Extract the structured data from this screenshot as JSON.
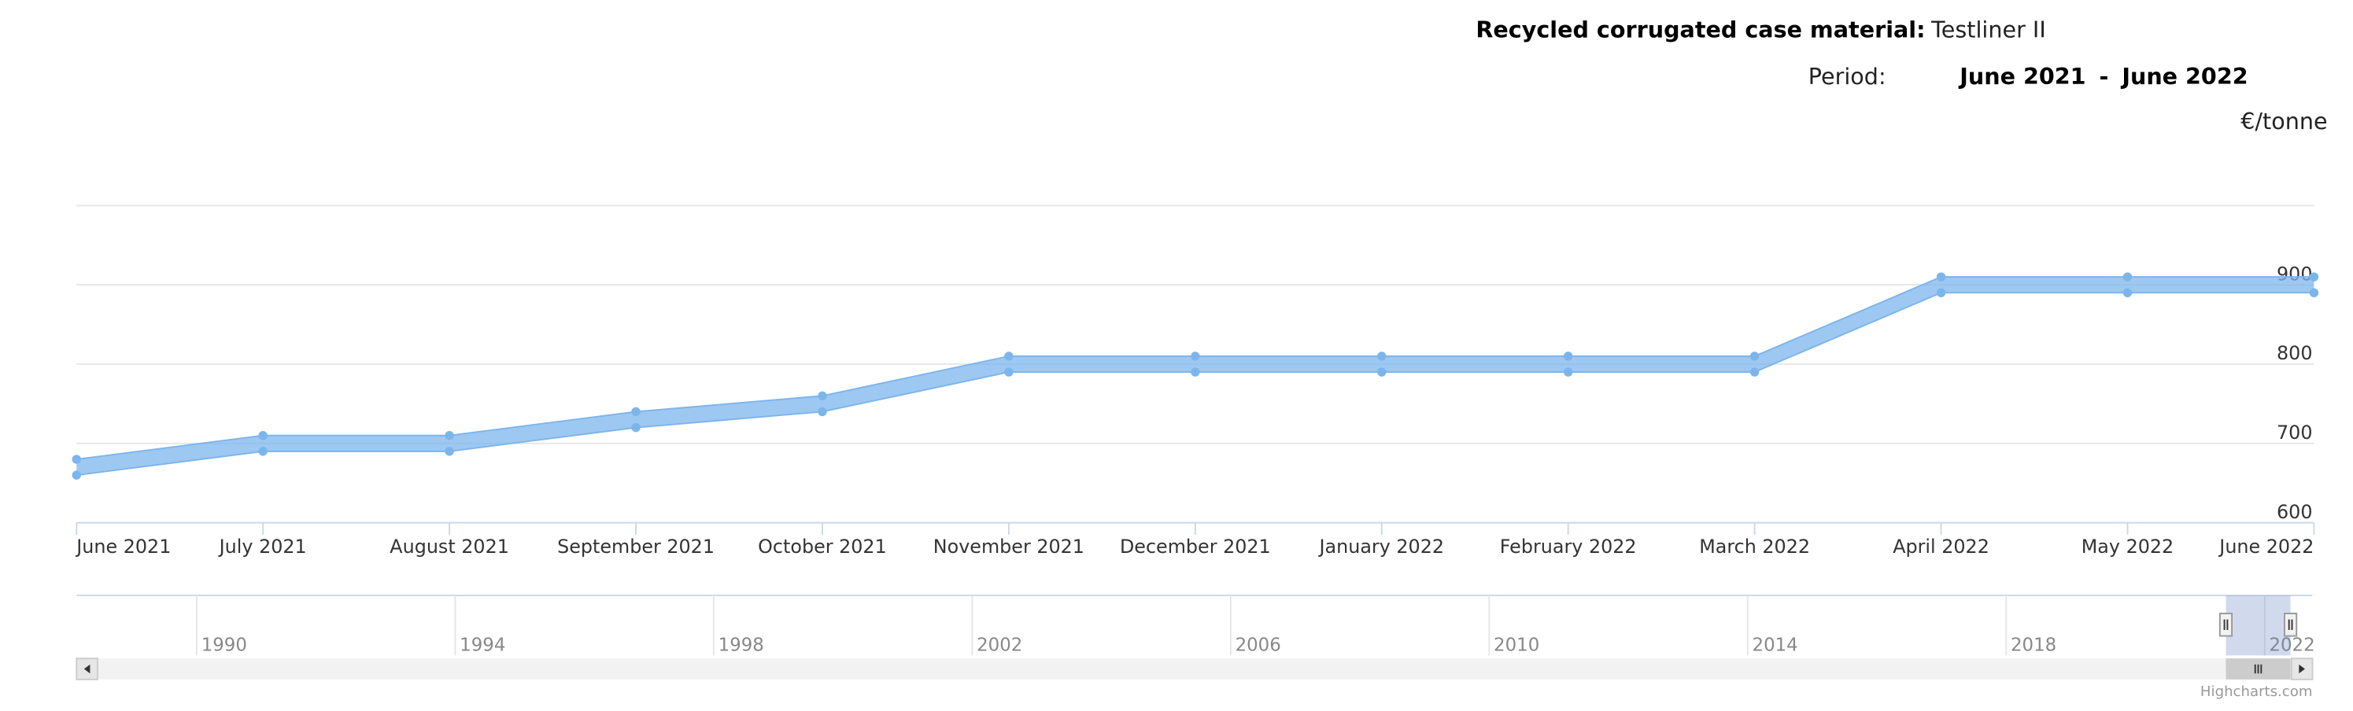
{
  "header": {
    "material_label": "Recycled corrugated case material:",
    "material": "Testliner II",
    "period_label": "Period:",
    "period_start": "June 2021",
    "period_sep": "-",
    "period_end": "June 2022"
  },
  "chart_data": {
    "type": "arearange",
    "y_label": "€/tonne",
    "categories": [
      "June 2021",
      "July 2021",
      "August 2021",
      "September 2021",
      "October 2021",
      "November 2021",
      "December 2021",
      "January 2022",
      "February 2022",
      "March 2022",
      "April 2022",
      "May 2022",
      "June 2022"
    ],
    "series": [
      {
        "color": "#7cb5ec",
        "low": [
          660,
          690,
          690,
          720,
          740,
          790,
          790,
          790,
          790,
          790,
          890,
          890,
          890
        ],
        "high": [
          680,
          710,
          710,
          740,
          760,
          810,
          810,
          810,
          810,
          810,
          910,
          910,
          910
        ]
      }
    ],
    "ylim": [
      600,
      1000
    ],
    "yticks": [
      600,
      700,
      800,
      900
    ],
    "grid": true,
    "navigator": {
      "xlim": [
        1988.14,
        2022.74
      ],
      "xticks": [
        1990,
        1994,
        1998,
        2002,
        2006,
        2010,
        2014,
        2018,
        2022
      ],
      "selection": [
        2021.4,
        2022.4
      ]
    }
  },
  "credits": "Highcharts.com"
}
